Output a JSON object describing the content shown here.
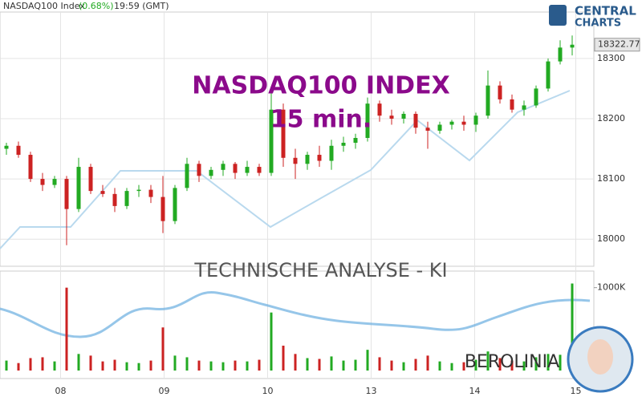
{
  "header": {
    "symbol": "NASDAQ100 Index",
    "change": "(0.68%)",
    "time": "19:59 (GMT)"
  },
  "logo": {
    "line1": "CENTRAL",
    "line2": "CHARTS"
  },
  "chart_data": {
    "type": "candlestick",
    "title": "NASDAQ100 INDEX",
    "subtitle": "15 min.",
    "annotation": "TECHNISCHE  ANALYSE - KI",
    "brand": "BEROLINIA",
    "up_color": "#22aa22",
    "down_color": "#cc2222",
    "grid": true,
    "ylim": [
      17955,
      18377
    ],
    "yticks": [
      18000,
      18100,
      18200,
      18300
    ],
    "last_price": 18322.77,
    "xticks": [
      {
        "value": 4.5,
        "label": "08"
      },
      {
        "value": 13.1,
        "label": "09"
      },
      {
        "value": 21.7,
        "label": "10"
      },
      {
        "value": 30.3,
        "label": "13"
      },
      {
        "value": 38.9,
        "label": "14"
      },
      {
        "value": 47.3,
        "label": "15"
      }
    ],
    "open": [
      18150,
      18155,
      18140,
      18100,
      18090,
      18100,
      18050,
      18120,
      18080,
      18075,
      18055,
      18080,
      18082,
      18070,
      18030,
      18085,
      18125,
      18105,
      18115,
      18125,
      18110,
      18120,
      18110,
      18215,
      18135,
      18125,
      18140,
      18130,
      18155,
      18160,
      18168,
      18225,
      18205,
      18200,
      18208,
      18185,
      18180,
      18190,
      18195,
      18190,
      18205,
      18255,
      18232,
      18215,
      18222,
      18250,
      18295,
      18318
    ],
    "high": [
      18160,
      18162,
      18145,
      18110,
      18105,
      18105,
      18135,
      18125,
      18090,
      18085,
      18085,
      18090,
      18090,
      18105,
      18090,
      18135,
      18130,
      18120,
      18130,
      18128,
      18130,
      18125,
      18245,
      18225,
      18150,
      18145,
      18155,
      18165,
      18170,
      18175,
      18235,
      18230,
      18215,
      18212,
      18212,
      18195,
      18195,
      18198,
      18205,
      18210,
      18280,
      18262,
      18240,
      18230,
      18255,
      18300,
      18330,
      18338
    ],
    "low": [
      18140,
      18135,
      18095,
      18080,
      18085,
      17990,
      18045,
      18075,
      18070,
      18045,
      18050,
      18070,
      18060,
      18010,
      18025,
      18080,
      18095,
      18100,
      18105,
      18100,
      18105,
      18105,
      18105,
      18120,
      18100,
      18115,
      18120,
      18115,
      18145,
      18150,
      18162,
      18195,
      18190,
      18192,
      18175,
      18150,
      18175,
      18182,
      18180,
      18178,
      18200,
      18225,
      18210,
      18205,
      18218,
      18245,
      18290,
      18305
    ],
    "close": [
      18155,
      18140,
      18100,
      18090,
      18100,
      18050,
      18120,
      18080,
      18075,
      18055,
      18080,
      18082,
      18070,
      18030,
      18085,
      18125,
      18105,
      18115,
      18125,
      18110,
      18120,
      18110,
      18215,
      18135,
      18125,
      18140,
      18130,
      18155,
      18160,
      18168,
      18225,
      18205,
      18200,
      18208,
      18185,
      18180,
      18190,
      18195,
      18190,
      18205,
      18255,
      18232,
      18215,
      18222,
      18250,
      18295,
      18318,
      18322.77
    ],
    "volume": {
      "ylim": [
        0,
        1200
      ],
      "yticks": [
        {
          "value": 1000,
          "label": "1000K"
        }
      ],
      "values": [
        120,
        90,
        150,
        160,
        110,
        1000,
        200,
        180,
        110,
        130,
        100,
        90,
        120,
        520,
        180,
        160,
        120,
        110,
        100,
        120,
        110,
        130,
        700,
        300,
        200,
        150,
        140,
        170,
        120,
        130,
        250,
        160,
        120,
        100,
        140,
        180,
        110,
        90,
        100,
        130,
        230,
        150,
        120,
        110,
        160,
        200,
        190,
        1050
      ]
    }
  }
}
